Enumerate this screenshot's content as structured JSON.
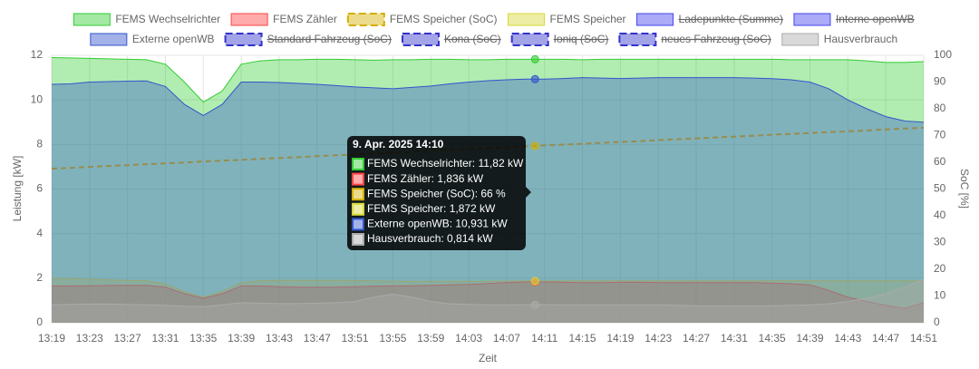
{
  "chart_data": {
    "type": "area",
    "xlabel": "Zeit",
    "ylabel": "Leistung [kW]",
    "y2label": "SoC [%]",
    "ylim": [
      0,
      12
    ],
    "yticks": [
      0,
      2,
      4,
      6,
      8,
      10,
      12
    ],
    "y2lim": [
      0,
      100
    ],
    "y2ticks": [
      0,
      10,
      20,
      30,
      40,
      50,
      60,
      70,
      80,
      90,
      100
    ],
    "grid": true,
    "legend": "top",
    "categories": [
      "13:19",
      null,
      "13:23",
      null,
      "13:27",
      null,
      "13:31",
      null,
      "13:35",
      null,
      "13:39",
      null,
      "13:43",
      null,
      "13:47",
      null,
      "13:51",
      null,
      "13:55",
      null,
      "13:59",
      null,
      "14:03",
      null,
      "14:07",
      null,
      "14:11",
      null,
      "14:15",
      null,
      "14:19",
      null,
      "14:23",
      null,
      "14:27",
      null,
      "14:31",
      null,
      "14:35",
      null,
      "14:39",
      null,
      "14:43",
      null,
      "14:47",
      null,
      "14:51"
    ],
    "series": [
      {
        "name": "FEMS Wechselrichter",
        "color": "#33cc33",
        "values": [
          11.9,
          11.88,
          11.86,
          11.84,
          11.82,
          11.8,
          11.6,
          10.8,
          9.9,
          10.4,
          11.6,
          11.75,
          11.8,
          11.8,
          11.82,
          11.82,
          11.8,
          11.78,
          11.8,
          11.8,
          11.82,
          11.82,
          11.8,
          11.8,
          11.82,
          11.82,
          11.82,
          11.82,
          11.8,
          11.82,
          11.82,
          11.82,
          11.82,
          11.82,
          11.82,
          11.82,
          11.82,
          11.82,
          11.82,
          11.8,
          11.8,
          11.8,
          11.8,
          11.75,
          11.68,
          11.68,
          11.72
        ]
      },
      {
        "name": "FEMS Zähler",
        "color": "#ff4444",
        "values": [
          1.65,
          1.65,
          1.66,
          1.67,
          1.68,
          1.68,
          1.6,
          1.3,
          1.1,
          1.3,
          1.65,
          1.65,
          1.62,
          1.6,
          1.6,
          1.6,
          1.62,
          1.64,
          1.65,
          1.66,
          1.68,
          1.7,
          1.72,
          1.76,
          1.8,
          1.84,
          1.84,
          1.82,
          1.8,
          1.8,
          1.82,
          1.82,
          1.8,
          1.8,
          1.8,
          1.8,
          1.8,
          1.8,
          1.78,
          1.75,
          1.7,
          1.45,
          1.15,
          0.95,
          0.78,
          0.65,
          0.9
        ]
      },
      {
        "name": "FEMS Speicher (SoC)",
        "color": "#d4b000",
        "dashed": true,
        "axis": "y2",
        "values": [
          57.6,
          57.9,
          58.3,
          58.6,
          58.9,
          59.3,
          59.6,
          59.9,
          60.3,
          60.6,
          60.9,
          61.3,
          61.6,
          61.9,
          62.3,
          62.6,
          62.9,
          63.3,
          63.6,
          63.9,
          64.3,
          64.6,
          64.9,
          65.3,
          65.6,
          65.9,
          66.3,
          66.6,
          66.9,
          67.3,
          67.6,
          67.9,
          68.3,
          68.6,
          68.9,
          69.3,
          69.6,
          69.9,
          70.3,
          70.6,
          70.9,
          71.3,
          71.6,
          71.9,
          72.3,
          72.6,
          72.9
        ]
      },
      {
        "name": "FEMS Speicher",
        "color": "#d8d838",
        "values": [
          2.0,
          1.98,
          1.95,
          1.92,
          1.9,
          1.88,
          1.75,
          1.4,
          1.15,
          1.4,
          1.8,
          1.88,
          1.9,
          1.9,
          1.9,
          1.9,
          1.9,
          1.88,
          1.86,
          1.86,
          1.86,
          1.86,
          1.86,
          1.86,
          1.87,
          1.87,
          1.87,
          1.87,
          1.88,
          1.88,
          1.88,
          1.88,
          1.88,
          1.88,
          1.88,
          1.88,
          1.88,
          1.88,
          1.88,
          1.88,
          1.88,
          1.88,
          1.88,
          1.88,
          1.88,
          1.88,
          1.88
        ]
      },
      {
        "name": "Ladepunkte (Summe)",
        "color": "#4444ee",
        "hidden": true
      },
      {
        "name": "Interne openWB",
        "color": "#4444ee",
        "hidden": true
      },
      {
        "name": "Externe openWB",
        "color": "#3355cc",
        "values": [
          10.7,
          10.72,
          10.8,
          10.82,
          10.84,
          10.85,
          10.6,
          9.8,
          9.3,
          9.8,
          10.8,
          10.8,
          10.78,
          10.74,
          10.7,
          10.64,
          10.58,
          10.54,
          10.5,
          10.56,
          10.62,
          10.72,
          10.8,
          10.86,
          10.9,
          10.93,
          10.93,
          10.96,
          11.0,
          10.98,
          10.96,
          10.98,
          11.0,
          11.0,
          11.0,
          11.0,
          11.0,
          10.98,
          10.95,
          10.9,
          10.8,
          10.5,
          10.0,
          9.6,
          9.25,
          9.05,
          9.0
        ]
      },
      {
        "name": "Standard Fahrzeug (SoC)",
        "color": "#3333cc",
        "dashed": true,
        "hidden": true
      },
      {
        "name": "Kona (SoC)",
        "color": "#3333cc",
        "dashed": true,
        "hidden": true
      },
      {
        "name": "Ioniq (SoC)",
        "color": "#3333cc",
        "dashed": true,
        "hidden": true
      },
      {
        "name": "neues Fahrzeug (SoC)",
        "color": "#3333cc",
        "dashed": true,
        "hidden": true
      },
      {
        "name": "Hausverbrauch",
        "color": "#aaaaaa",
        "values": [
          0.8,
          0.82,
          0.84,
          0.84,
          0.82,
          0.8,
          0.78,
          0.74,
          0.72,
          0.8,
          0.9,
          0.88,
          0.86,
          0.86,
          0.88,
          0.9,
          0.95,
          1.15,
          1.28,
          1.15,
          0.95,
          0.85,
          0.82,
          0.8,
          0.8,
          0.81,
          0.81,
          0.8,
          0.8,
          0.8,
          0.8,
          0.8,
          0.8,
          0.78,
          0.76,
          0.75,
          0.75,
          0.75,
          0.76,
          0.78,
          0.8,
          0.85,
          0.95,
          1.1,
          1.3,
          1.6,
          1.95
        ]
      }
    ],
    "tooltip": {
      "title": "9. Apr. 2025 14:10",
      "items": [
        {
          "text": "FEMS Wechselrichter: 11,82 kW",
          "series": 0
        },
        {
          "text": "FEMS Zähler: 1,836 kW",
          "series": 1
        },
        {
          "text": "FEMS Speicher (SoC): 66 %",
          "series": 2
        },
        {
          "text": "FEMS Speicher: 1,872 kW",
          "series": 3
        },
        {
          "text": "Externe openWB: 10,931 kW",
          "series": 6
        },
        {
          "text": "Hausverbrauch: 0,814 kW",
          "series": 11
        }
      ]
    }
  }
}
